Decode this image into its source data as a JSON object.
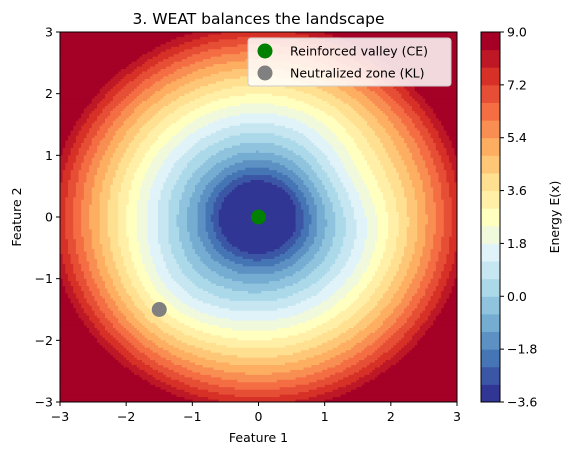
{
  "chart_data": {
    "type": "contourf",
    "title": "3. WEAT balances the landscape",
    "xlabel": "Feature 1",
    "ylabel": "Feature 2",
    "xlim": [
      -3,
      3
    ],
    "ylim": [
      -3,
      3
    ],
    "x_ticks": [
      -3,
      -2,
      -1,
      0,
      1,
      2,
      3
    ],
    "y_ticks": [
      -3,
      -2,
      -1,
      0,
      1,
      2,
      3
    ],
    "x_tick_labels": [
      "−3",
      "−2",
      "−1",
      "0",
      "1",
      "2",
      "3"
    ],
    "y_tick_labels": [
      "−3",
      "−2",
      "−1",
      "0",
      "1",
      "2",
      "3"
    ],
    "colormap": "RdYlBu_r",
    "contour_levels": {
      "min": -3.6,
      "max": 9.0,
      "step": 0.6
    },
    "colorbar": {
      "label": "Energy E(x)",
      "range": [
        -3.6,
        9.0
      ],
      "ticks": [
        -3.6,
        -1.8,
        0.0,
        1.8,
        3.6,
        5.4,
        7.2,
        9.0
      ],
      "tick_labels": [
        "−3.6",
        "−1.8",
        "0.0",
        "1.8",
        "3.6",
        "5.4",
        "7.2",
        "9.0"
      ]
    },
    "series": [
      {
        "name": "Reinforced valley (CE)",
        "type": "scatter",
        "color": "#008000",
        "x": [
          0
        ],
        "y": [
          0
        ]
      },
      {
        "name": "Neutralized zone (KL)",
        "type": "scatter",
        "color": "#808080",
        "x": [
          -1.5
        ],
        "y": [
          -1.5
        ]
      }
    ],
    "legend_position": "top-right",
    "grid": false
  }
}
